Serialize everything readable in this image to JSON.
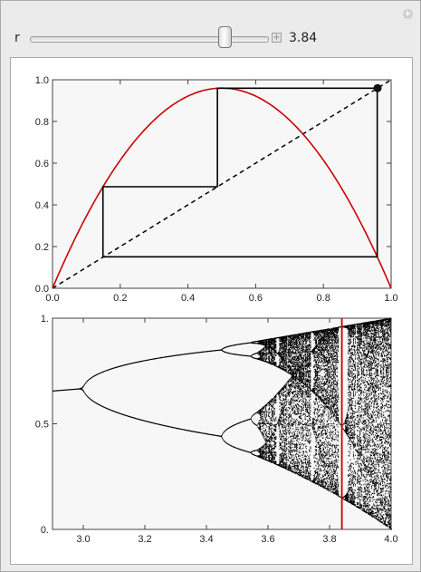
{
  "controls": {
    "parameter_label": "r",
    "parameter_value": "3.84",
    "slider": {
      "min": 2.9,
      "max": 4.0,
      "value": 3.84
    }
  },
  "chart_data": [
    {
      "type": "line",
      "title": "",
      "xlabel": "",
      "ylabel": "",
      "xlim": [
        0.0,
        1.0
      ],
      "ylim": [
        0.0,
        1.0
      ],
      "x_ticks": [
        "0.0",
        "0.2",
        "0.4",
        "0.6",
        "0.8",
        "1.0"
      ],
      "y_ticks": [
        "0.0",
        "0.2",
        "0.4",
        "0.6",
        "0.8",
        "1.0"
      ],
      "r": 3.84,
      "series": [
        {
          "kind": "logistic-curve",
          "color": "#cc0000",
          "formula_r": 3.84
        },
        {
          "kind": "identity-line",
          "style": "dashed",
          "color": "#000000"
        },
        {
          "kind": "cobweb",
          "color": "#000000",
          "orbit_x": [
            0.149,
            0.487,
            0.959
          ]
        },
        {
          "kind": "marker-point",
          "x": 0.96,
          "y": 0.96,
          "color": "#111111"
        }
      ]
    },
    {
      "type": "scatter",
      "title": "",
      "xlabel": "",
      "ylabel": "",
      "xlim": [
        2.9,
        4.0
      ],
      "ylim": [
        0.0,
        1.0
      ],
      "x_ticks": [
        "3.0",
        "3.2",
        "3.4",
        "3.6",
        "3.8",
        "4.0"
      ],
      "y_ticks": [
        "0.",
        "0.5",
        "1."
      ],
      "description": "bifurcation diagram of the logistic map",
      "marker_r": 3.84,
      "marker_color": "#cc0000"
    }
  ]
}
